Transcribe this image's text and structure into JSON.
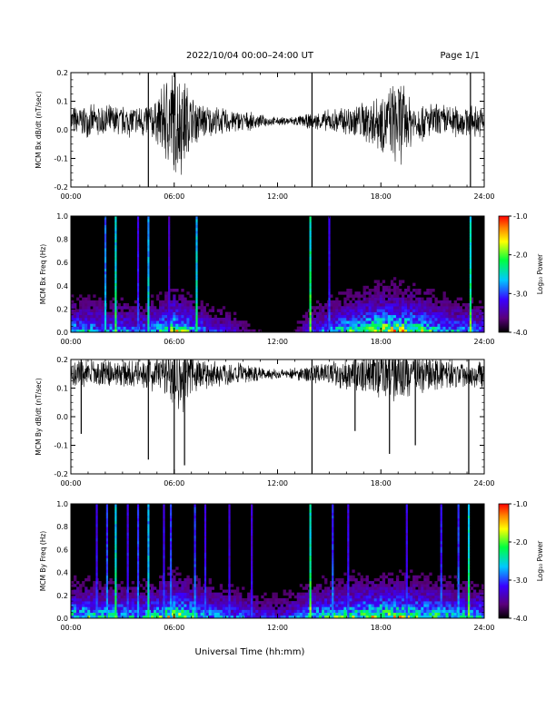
{
  "header": {
    "date_range": "2022/10/04  00:00–24:00 UT",
    "page": "Page 1/1"
  },
  "x_axis": {
    "label": "Universal Time (hh:mm)",
    "range_hours": [
      0,
      24
    ],
    "ticks": [
      0,
      6,
      12,
      18,
      24
    ],
    "tick_labels": [
      "00:00",
      "06:00",
      "12:00",
      "18:00",
      "24:00"
    ]
  },
  "colorbar": {
    "label": "Log₁₀ Power",
    "range": [
      -4.0,
      -1.0
    ],
    "ticks": [
      -1.0,
      -2.0,
      -3.0,
      -4.0
    ],
    "tick_labels": [
      "-1.0",
      "-2.0",
      "-3.0",
      "-4.0"
    ],
    "colors": [
      "#000000",
      "#5a007a",
      "#3a00ff",
      "#00c8ff",
      "#00ff40",
      "#ffff00",
      "#ff8000",
      "#ff0000"
    ]
  },
  "chart_data": [
    {
      "type": "line",
      "ylabel": "MCM Bx dB/dt (nT/sec)",
      "ylim": [
        -0.2,
        0.2
      ],
      "yticks": [
        -0.2,
        -0.1,
        0.0,
        0.1,
        0.2
      ],
      "ytick_labels": [
        "-0.2",
        "-0.1",
        "0.0",
        "0.1",
        "0.2"
      ],
      "center": 0.03,
      "envelope": {
        "x": [
          0,
          1,
          2,
          3,
          4,
          5,
          5.5,
          6,
          6.5,
          7,
          8,
          9,
          10,
          11,
          12,
          13,
          14,
          15,
          16,
          17,
          18,
          18.5,
          19,
          19.5,
          20,
          21,
          22,
          23,
          24
        ],
        "amplitude": [
          0.06,
          0.06,
          0.065,
          0.06,
          0.065,
          0.08,
          0.18,
          0.23,
          0.2,
          0.1,
          0.06,
          0.05,
          0.04,
          0.025,
          0.015,
          0.02,
          0.03,
          0.045,
          0.06,
          0.08,
          0.12,
          0.13,
          0.18,
          0.12,
          0.08,
          0.07,
          0.065,
          0.06,
          0.06
        ]
      },
      "spikes": [
        {
          "x": 4.5,
          "min": -0.2,
          "max": 0.2
        },
        {
          "x": 14.0,
          "min": -0.2,
          "max": 0.2
        },
        {
          "x": 23.2,
          "min": -0.2,
          "max": 0.2
        }
      ]
    },
    {
      "type": "heatmap",
      "ylabel": "MCM Bx Freq (Hz)",
      "ylim": [
        0,
        1.0
      ],
      "yticks": [
        0.0,
        0.2,
        0.4,
        0.6,
        0.8,
        1.0
      ],
      "ytick_labels": [
        "0.0",
        "0.2",
        "0.4",
        "0.6",
        "0.8",
        "1.0"
      ],
      "activity": {
        "x": [
          0,
          1,
          2,
          3,
          4,
          5,
          6,
          7,
          8,
          9,
          10,
          11,
          12,
          13,
          14,
          15,
          16,
          17,
          18,
          19,
          20,
          21,
          22,
          23,
          24
        ],
        "level": [
          0.45,
          0.45,
          0.4,
          0.4,
          0.35,
          0.45,
          0.7,
          0.5,
          0.3,
          0.25,
          0.15,
          0.08,
          0.05,
          0.1,
          0.3,
          0.45,
          0.55,
          0.65,
          0.75,
          0.75,
          0.7,
          0.55,
          0.45,
          0.4,
          0.35
        ]
      },
      "streaks": [
        {
          "x": 2.0,
          "strength": 0.7
        },
        {
          "x": 2.6,
          "strength": 0.9
        },
        {
          "x": 3.9,
          "strength": 0.5
        },
        {
          "x": 4.5,
          "strength": 0.8
        },
        {
          "x": 5.7,
          "strength": 0.4
        },
        {
          "x": 7.3,
          "strength": 0.85
        },
        {
          "x": 13.9,
          "strength": 1.0
        },
        {
          "x": 15.0,
          "strength": 0.5
        },
        {
          "x": 23.2,
          "strength": 0.95
        }
      ]
    },
    {
      "type": "line",
      "ylabel": "MCM By dB/dt (nT/sec)",
      "ylim": [
        -0.2,
        0.2
      ],
      "yticks": [
        -0.2,
        -0.1,
        0.0,
        0.1,
        0.2
      ],
      "ytick_labels": [
        "-0.2",
        "-0.1",
        "0.0",
        "0.1",
        "0.2"
      ],
      "center": 0.15,
      "envelope": {
        "x": [
          0,
          1,
          2,
          3,
          4,
          5,
          5.5,
          6,
          6.5,
          7,
          8,
          9,
          10,
          11,
          12,
          13,
          14,
          15,
          16,
          17,
          18,
          19,
          20,
          21,
          22,
          23,
          24
        ],
        "amplitude": [
          0.06,
          0.06,
          0.055,
          0.05,
          0.055,
          0.07,
          0.1,
          0.14,
          0.16,
          0.1,
          0.06,
          0.05,
          0.04,
          0.03,
          0.02,
          0.025,
          0.035,
          0.05,
          0.06,
          0.08,
          0.1,
          0.1,
          0.08,
          0.07,
          0.06,
          0.055,
          0.05
        ]
      },
      "spikes": [
        {
          "x": 0.6,
          "min": -0.06,
          "max": 0.2
        },
        {
          "x": 4.5,
          "min": -0.15,
          "max": 0.2
        },
        {
          "x": 6.0,
          "min": -0.2,
          "max": 0.2
        },
        {
          "x": 6.6,
          "min": -0.17,
          "max": 0.2
        },
        {
          "x": 14.0,
          "min": -0.2,
          "max": 0.2
        },
        {
          "x": 16.5,
          "min": -0.05,
          "max": 0.2
        },
        {
          "x": 18.5,
          "min": -0.13,
          "max": 0.2
        },
        {
          "x": 20.0,
          "min": -0.1,
          "max": 0.2
        },
        {
          "x": 23.1,
          "min": -0.2,
          "max": 0.2
        }
      ]
    },
    {
      "type": "heatmap",
      "ylabel": "MCM By Freq (Hz)",
      "ylim": [
        0,
        1.0
      ],
      "yticks": [
        0.0,
        0.2,
        0.4,
        0.6,
        0.8,
        1.0
      ],
      "ytick_labels": [
        "0.0",
        "0.2",
        "0.4",
        "0.6",
        "0.8",
        "1.0"
      ],
      "activity": {
        "x": [
          0,
          1,
          2,
          3,
          4,
          5,
          6,
          7,
          8,
          9,
          10,
          11,
          12,
          13,
          14,
          15,
          16,
          17,
          18,
          19,
          20,
          21,
          22,
          23,
          24
        ],
        "level": [
          0.55,
          0.55,
          0.5,
          0.5,
          0.45,
          0.55,
          0.75,
          0.6,
          0.45,
          0.4,
          0.35,
          0.3,
          0.25,
          0.35,
          0.5,
          0.55,
          0.6,
          0.65,
          0.7,
          0.7,
          0.65,
          0.6,
          0.55,
          0.5,
          0.45
        ]
      },
      "streaks": [
        {
          "x": 1.5,
          "strength": 0.5
        },
        {
          "x": 2.1,
          "strength": 0.6
        },
        {
          "x": 2.6,
          "strength": 0.9
        },
        {
          "x": 3.3,
          "strength": 0.5
        },
        {
          "x": 3.9,
          "strength": 0.6
        },
        {
          "x": 4.5,
          "strength": 0.8
        },
        {
          "x": 5.4,
          "strength": 0.5
        },
        {
          "x": 5.8,
          "strength": 0.6
        },
        {
          "x": 7.2,
          "strength": 0.6
        },
        {
          "x": 7.8,
          "strength": 0.5
        },
        {
          "x": 9.2,
          "strength": 0.45
        },
        {
          "x": 10.5,
          "strength": 0.45
        },
        {
          "x": 13.9,
          "strength": 1.0
        },
        {
          "x": 15.2,
          "strength": 0.6
        },
        {
          "x": 16.1,
          "strength": 0.5
        },
        {
          "x": 19.5,
          "strength": 0.5
        },
        {
          "x": 21.5,
          "strength": 0.55
        },
        {
          "x": 22.5,
          "strength": 0.6
        },
        {
          "x": 23.1,
          "strength": 0.95
        }
      ]
    }
  ]
}
